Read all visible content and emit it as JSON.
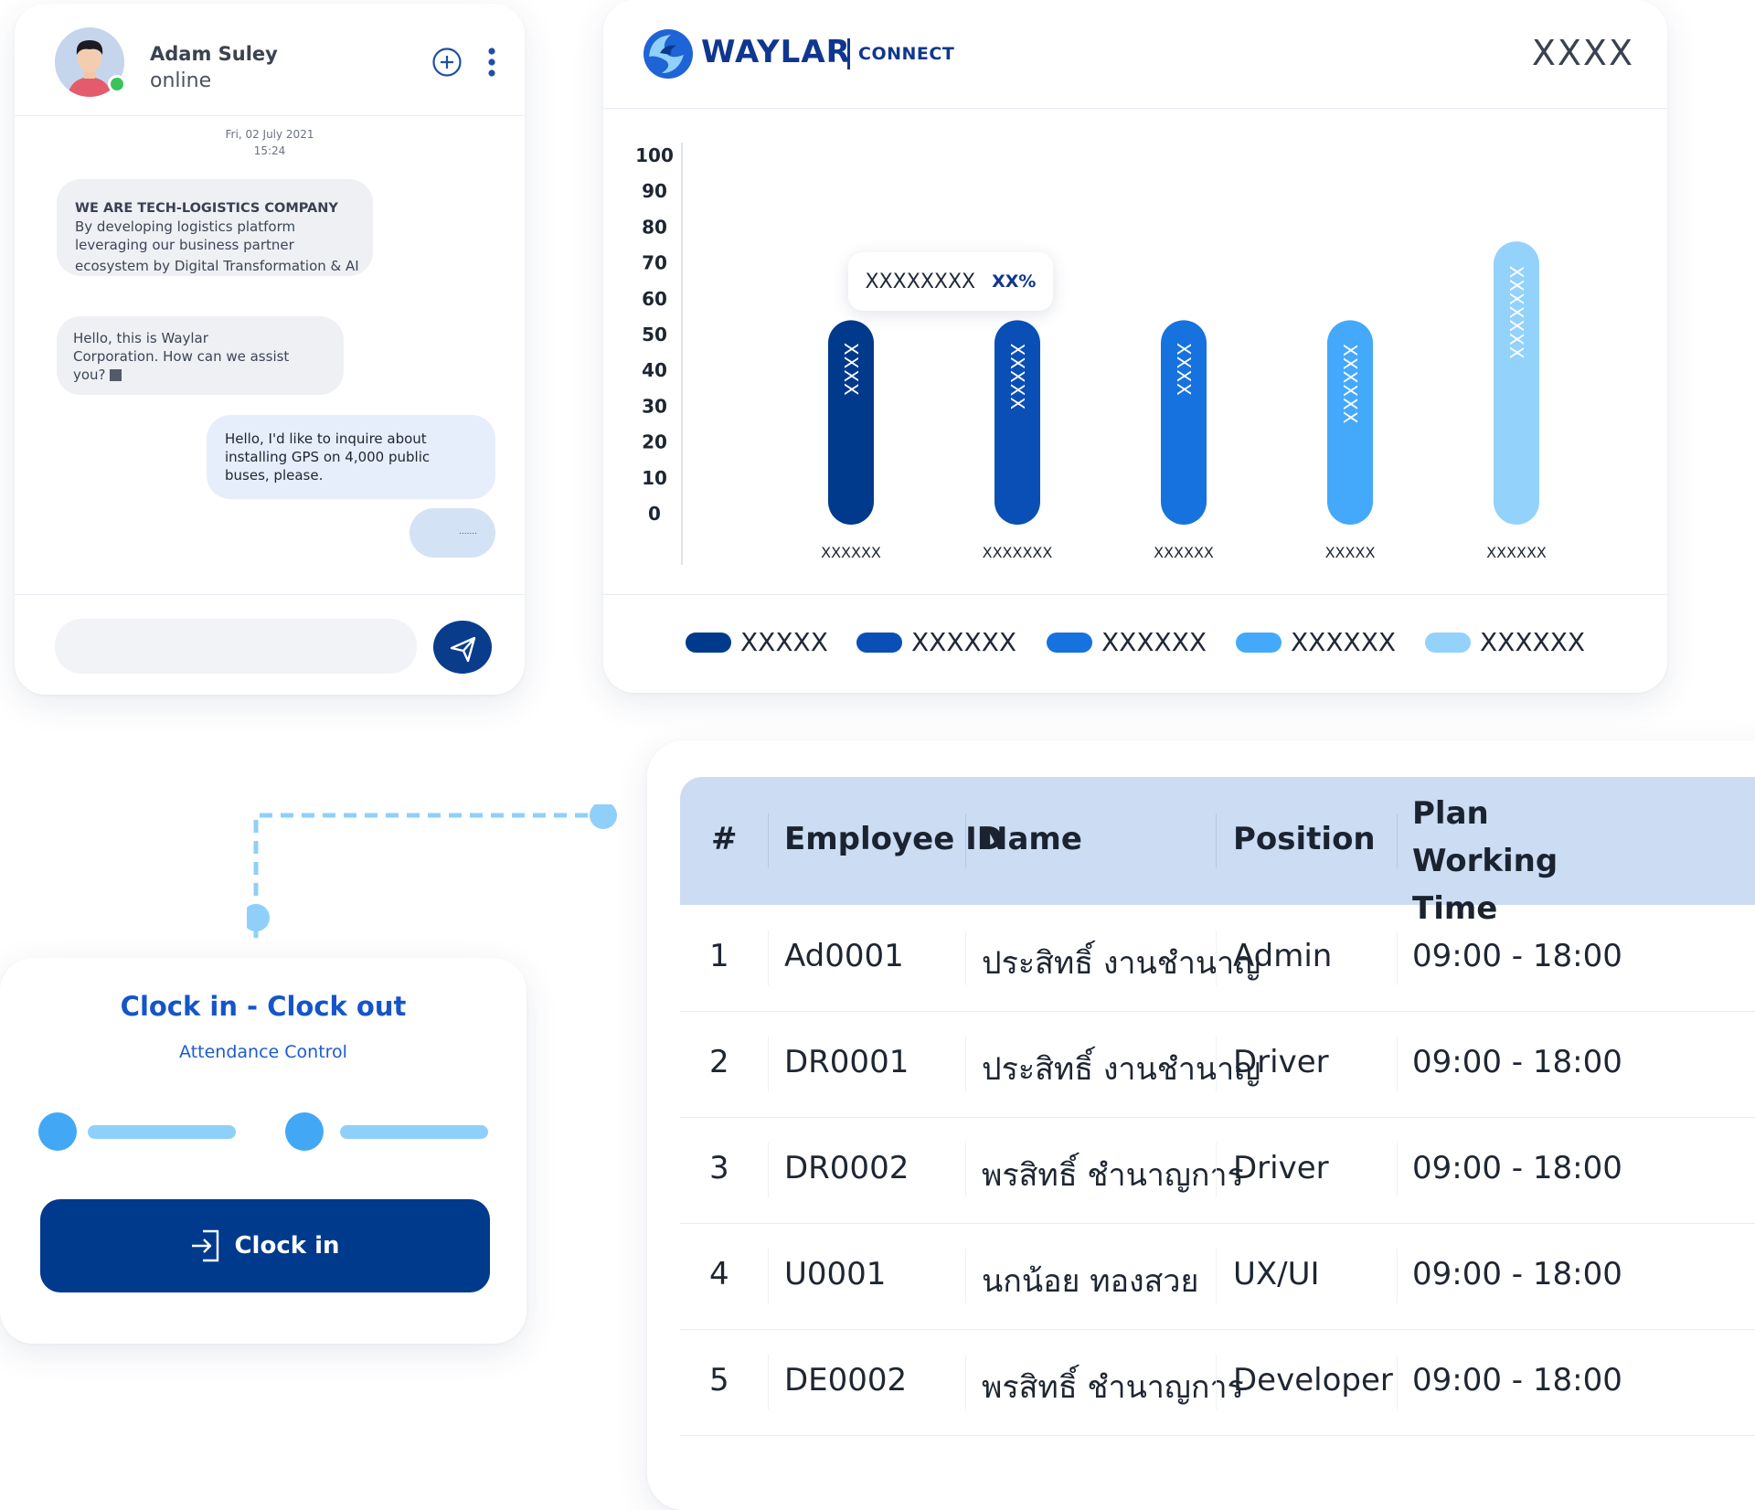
{
  "chat": {
    "user_name": "Adam Suley",
    "user_status": "online",
    "date_line1": "Fri, 02 July 2021",
    "date_line2": "15:24",
    "messages": [
      {
        "title": "WE ARE TECH-LOGISTICS COMPANY",
        "lines": [
          "By developing logistics platform",
          "leveraging our business partner",
          "ecosystem by Digital Transformation & AI"
        ]
      },
      {
        "lines": [
          "Hello, this is Waylar",
          "Corporation. How can we assist",
          "you?"
        ]
      },
      {
        "lines": [
          "Hello, I'd like to inquire about",
          "installing GPS on 4,000 public",
          "buses, please."
        ]
      },
      {
        "text": "......."
      }
    ],
    "input_placeholder": ""
  },
  "brand": {
    "name": "WAYLAR",
    "sub": "CONNECT"
  },
  "chart_header": {
    "title": "XXXX"
  },
  "tooltip": {
    "label": "XXXXXXXX",
    "value": "XX%"
  },
  "chart_data": {
    "type": "bar",
    "categories": [
      "XXXXXX",
      "XXXXXXX",
      "XXXXXX",
      "XXXXX",
      "XXXXXX"
    ],
    "bar_labels": [
      "XXXX",
      "XXXXX",
      "XXXX",
      "XXXXXX",
      "XXXXXXX"
    ],
    "values": [
      54,
      54,
      54,
      54,
      76
    ],
    "ylim": [
      0,
      100
    ],
    "yticks": [
      0,
      10,
      20,
      30,
      40,
      50,
      60,
      70,
      80,
      90,
      100
    ],
    "colors": [
      "#003a8c",
      "#0a4fb6",
      "#1672de",
      "#44a9fa",
      "#92d2fb"
    ],
    "legend": [
      "XXXXX",
      "XXXXXX",
      "XXXXXX",
      "XXXXXX",
      "XXXXXX"
    ],
    "legend_position": "bottom",
    "grid": false
  },
  "clock": {
    "title": "Clock in - Clock out",
    "subtitle": "Attendance Control",
    "button_label": "Clock in"
  },
  "table": {
    "headers": [
      "#",
      "Employee ID",
      "Name",
      "Position",
      "Plan Working Time"
    ],
    "rows": [
      [
        "1",
        "Ad0001",
        "ประสิทธิ์ งานชำนาญ",
        "Admin",
        "09:00 - 18:00"
      ],
      [
        "2",
        "DR0001",
        "ประสิทธิ์ งานชำนาญ",
        "Driver",
        "09:00 - 18:00"
      ],
      [
        "3",
        "DR0002",
        "พรสิทธิ์ ชำนาญการ",
        "Driver",
        "09:00 - 18:00"
      ],
      [
        "4",
        "U0001",
        "นกน้อย ทองสวย",
        "UX/UI",
        "09:00 - 18:00"
      ],
      [
        "5",
        "DE0002",
        "พรสิทธิ์ ชำนาญการ",
        "Developer",
        "09:00 - 18:00"
      ]
    ]
  }
}
